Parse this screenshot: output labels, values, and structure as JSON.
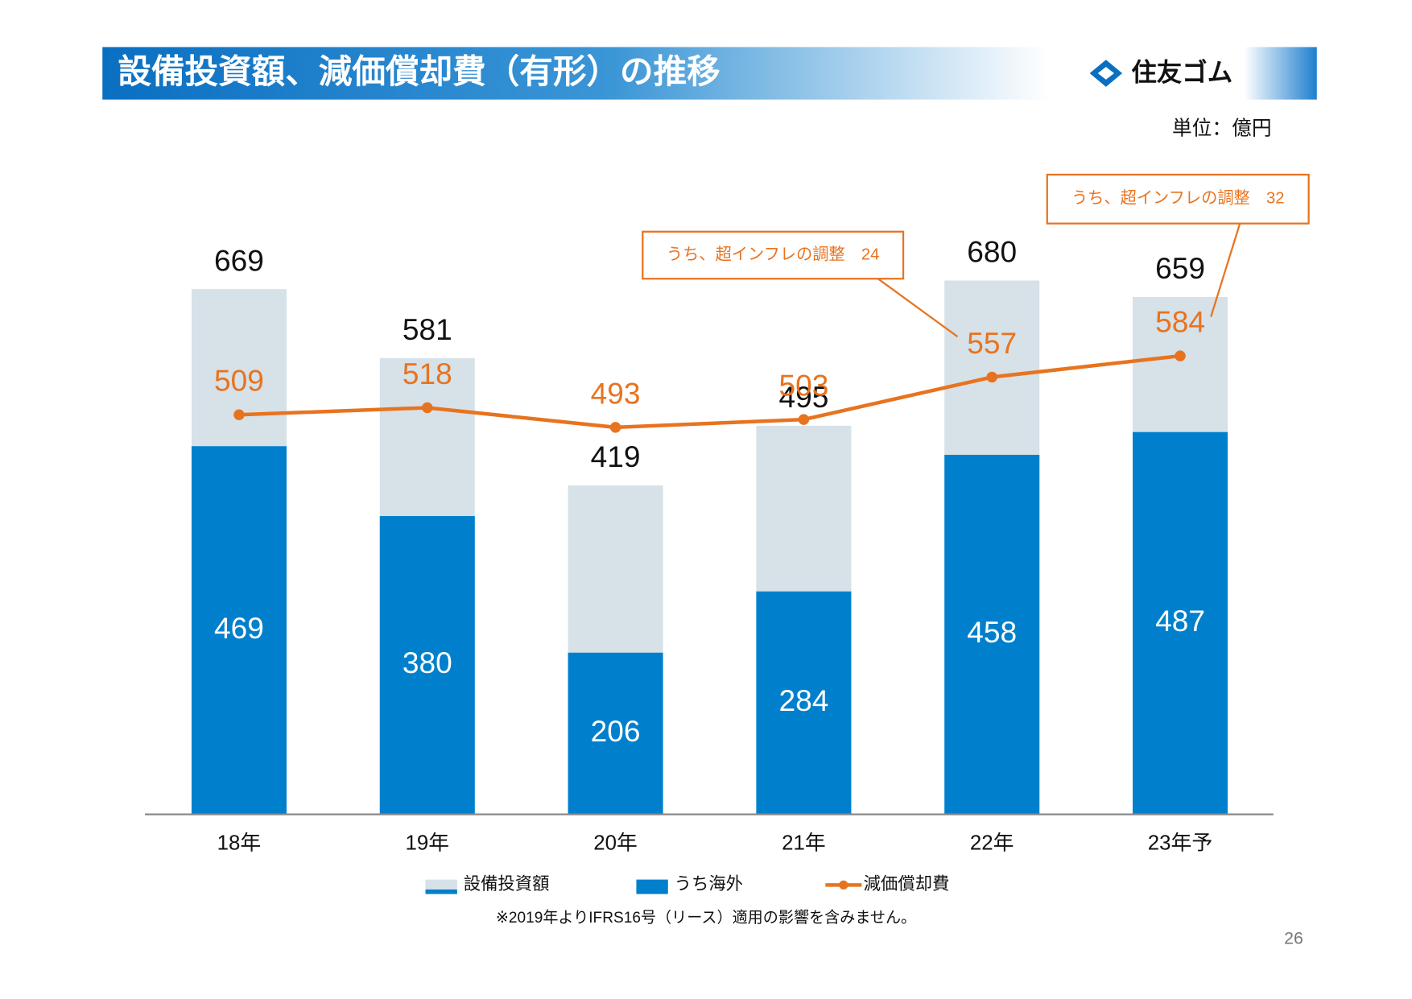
{
  "chart_data": {
    "type": "bar",
    "title": "設備投資額、減価償却費（有形）の推移",
    "logo": "住友ゴム",
    "unit": "単位：億円",
    "categories": [
      "18年",
      "19年",
      "20年",
      "21年",
      "22年",
      "23年予"
    ],
    "series": [
      {
        "name": "設備投資額",
        "color": "#d6e1e8",
        "values": [
          669,
          581,
          419,
          495,
          680,
          659
        ]
      },
      {
        "name": "うち海外",
        "color": "#0080cc",
        "values": [
          469,
          380,
          206,
          284,
          458,
          487
        ]
      },
      {
        "name": "減価償却費",
        "type": "line",
        "color": "#e8731f",
        "values": [
          509,
          518,
          493,
          503,
          557,
          584
        ]
      }
    ],
    "annotations": [
      {
        "text": "うち、超インフレの調整　24",
        "category": "22年"
      },
      {
        "text": "うち、超インフレの調整　32",
        "category": "23年予"
      }
    ],
    "footnote": "※2019年よりIFRS16号（リース）適用の影響を含みません。",
    "page_number": "26"
  }
}
